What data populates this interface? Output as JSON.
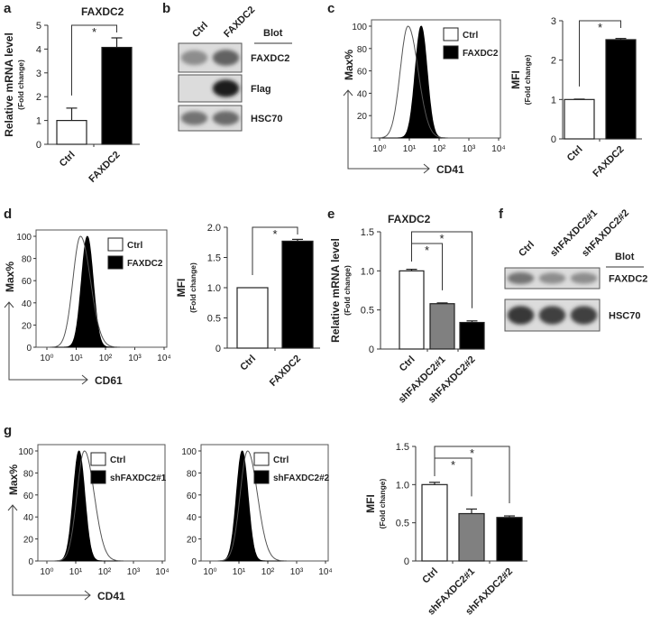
{
  "panel_labels": [
    "a",
    "b",
    "c",
    "d",
    "e",
    "f",
    "g"
  ],
  "chart_data": [
    {
      "panel": "a",
      "type": "bar",
      "title": "FAXDC2",
      "ylabel": "Relative mRNA level",
      "ylabel_sub": "(Fold change)",
      "categories": [
        "Ctrl",
        "FAXDC2"
      ],
      "values": [
        1.0,
        4.07
      ],
      "errors": [
        0.52,
        0.4
      ],
      "ylim": [
        0,
        5
      ],
      "yticks": [
        "0",
        "1",
        "2",
        "3",
        "4",
        "5"
      ],
      "ytick_values": [
        0,
        1,
        2,
        3,
        4,
        5
      ],
      "bar_colors": [
        "#ffffff",
        "#000000"
      ],
      "significance": [
        {
          "pair": [
            0,
            1
          ],
          "label": "*"
        }
      ],
      "grid": false
    },
    {
      "panel": "b",
      "type": "blot",
      "header": "Blot",
      "lanes": [
        "Ctrl",
        "FAXDC2"
      ],
      "rows": [
        "FAXDC2",
        "Flag",
        "HSC70"
      ],
      "band_intensity": [
        [
          0.35,
          0.6
        ],
        [
          0.0,
          1.0
        ],
        [
          0.5,
          0.55
        ]
      ]
    },
    {
      "panel": "c",
      "type": "area",
      "ylabel": "Max%",
      "xlabel": "CD41",
      "xscale": "log",
      "xlim": [
        1,
        10000
      ],
      "xticks": [
        "10⁰",
        "10¹",
        "10²",
        "10³",
        "10⁴"
      ],
      "yticks": [
        "20",
        "40",
        "60",
        "80",
        "100"
      ],
      "ytick_values": [
        20,
        40,
        60,
        80,
        100
      ],
      "ylim": [
        0,
        100
      ],
      "series": [
        {
          "name": "Ctrl",
          "mode": 9,
          "fill": "#ffffff"
        },
        {
          "name": "FAXDC2",
          "mode": 25,
          "fill": "#000000"
        }
      ],
      "legend": "top-right"
    },
    {
      "panel": "c",
      "type": "bar",
      "ylabel": "MFI",
      "ylabel_sub": "(Fold change)",
      "categories": [
        "Ctrl",
        "FAXDC2"
      ],
      "values": [
        1.0,
        2.52
      ],
      "errors": [
        0.01,
        0.03
      ],
      "ylim": [
        0,
        3
      ],
      "yticks": [
        "0",
        "1",
        "2",
        "3"
      ],
      "ytick_values": [
        0,
        1,
        2,
        3
      ],
      "bar_colors": [
        "#ffffff",
        "#000000"
      ],
      "significance": [
        {
          "pair": [
            0,
            1
          ],
          "label": "*"
        }
      ]
    },
    {
      "panel": "d",
      "type": "area",
      "ylabel": "Max%",
      "xlabel": "CD61",
      "xscale": "log",
      "xlim": [
        1,
        10000
      ],
      "xticks": [
        "10⁰",
        "10¹",
        "10²",
        "10³",
        "10⁴"
      ],
      "yticks": [
        "0",
        "20",
        "40",
        "60",
        "80",
        "100"
      ],
      "ytick_values": [
        0,
        20,
        40,
        60,
        80,
        100
      ],
      "ylim": [
        0,
        100
      ],
      "series": [
        {
          "name": "Ctrl",
          "mode": 14,
          "fill": "#ffffff"
        },
        {
          "name": "FAXDC2",
          "mode": 24,
          "fill": "#000000"
        }
      ],
      "legend": "top-right"
    },
    {
      "panel": "d",
      "type": "bar",
      "ylabel": "MFI",
      "ylabel_sub": "(Fold change)",
      "categories": [
        "Ctrl",
        "FAXDC2"
      ],
      "values": [
        1.0,
        1.77
      ],
      "errors": [
        0.0,
        0.03
      ],
      "ylim": [
        0,
        2
      ],
      "yticks": [
        "0",
        "0.5",
        "1.0",
        "1.5",
        "2.0"
      ],
      "ytick_values": [
        0,
        0.5,
        1,
        1.5,
        2
      ],
      "bar_colors": [
        "#ffffff",
        "#000000"
      ],
      "significance": [
        {
          "pair": [
            0,
            1
          ],
          "label": "*"
        }
      ]
    },
    {
      "panel": "e",
      "type": "bar",
      "title": "FAXDC2",
      "ylabel": "Relative mRNA level",
      "ylabel_sub": "(Fold change)",
      "categories": [
        "Ctrl",
        "shFAXDC2#1",
        "shFAXDC2#2"
      ],
      "values": [
        1.0,
        0.58,
        0.34
      ],
      "errors": [
        0.02,
        0.01,
        0.02
      ],
      "ylim": [
        0,
        1.5
      ],
      "yticks": [
        "0",
        "0.5",
        "1.0",
        "1.5"
      ],
      "ytick_values": [
        0,
        0.5,
        1,
        1.5
      ],
      "bar_colors": [
        "#ffffff",
        "#808080",
        "#000000"
      ],
      "significance": [
        {
          "pair": [
            0,
            1
          ],
          "label": "*"
        },
        {
          "pair": [
            0,
            2
          ],
          "label": "*"
        }
      ]
    },
    {
      "panel": "f",
      "type": "blot",
      "header": "Blot",
      "lanes": [
        "Ctrl",
        "shFAXDC2#1",
        "shFAXDC2#2"
      ],
      "rows": [
        "FAXDC2",
        "HSC70"
      ],
      "band_intensity": [
        [
          0.5,
          0.35,
          0.35
        ],
        [
          0.85,
          0.8,
          0.8
        ]
      ]
    },
    {
      "panel": "g",
      "type": "area",
      "ylabel": "Max%",
      "xlabel": "CD41",
      "xscale": "log",
      "xlim": [
        1,
        10000
      ],
      "xticks": [
        "10⁰",
        "10¹",
        "10²",
        "10³",
        "10⁴"
      ],
      "yticks": [
        "0",
        "20",
        "40",
        "60",
        "80",
        "100"
      ],
      "ytick_values": [
        0,
        20,
        40,
        60,
        80,
        100
      ],
      "ylim": [
        0,
        100
      ],
      "series": [
        {
          "name": "Ctrl",
          "mode": 20,
          "fill": "#ffffff"
        },
        {
          "name": "shFAXDC2#1",
          "mode": 13,
          "fill": "#000000"
        }
      ],
      "legend": "top-right"
    },
    {
      "panel": "g",
      "type": "area",
      "xscale": "log",
      "xlim": [
        1,
        10000
      ],
      "xticks": [
        "10⁰",
        "10¹",
        "10²",
        "10³",
        "10⁴"
      ],
      "yticks": [
        "0",
        "20",
        "40",
        "60",
        "80",
        "100"
      ],
      "ytick_values": [
        0,
        20,
        40,
        60,
        80,
        100
      ],
      "ylim": [
        0,
        100
      ],
      "series": [
        {
          "name": "Ctrl",
          "mode": 20,
          "fill": "#ffffff"
        },
        {
          "name": "shFAXDC2#2",
          "mode": 13,
          "fill": "#000000"
        }
      ],
      "legend": "top-right"
    },
    {
      "panel": "g",
      "type": "bar",
      "ylabel": "MFI",
      "ylabel_sub": "(Fold change)",
      "categories": [
        "Ctrl",
        "shFAXDC2#1",
        "shFAXDC2#2"
      ],
      "values": [
        1.0,
        0.62,
        0.57
      ],
      "errors": [
        0.03,
        0.06,
        0.02
      ],
      "ylim": [
        0,
        1.5
      ],
      "yticks": [
        "0",
        "0.5",
        "1.0",
        "1.5"
      ],
      "ytick_values": [
        0,
        0.5,
        1,
        1.5
      ],
      "bar_colors": [
        "#ffffff",
        "#808080",
        "#000000"
      ],
      "significance": [
        {
          "pair": [
            0,
            1
          ],
          "label": "*"
        },
        {
          "pair": [
            0,
            2
          ],
          "label": "*"
        }
      ]
    }
  ]
}
